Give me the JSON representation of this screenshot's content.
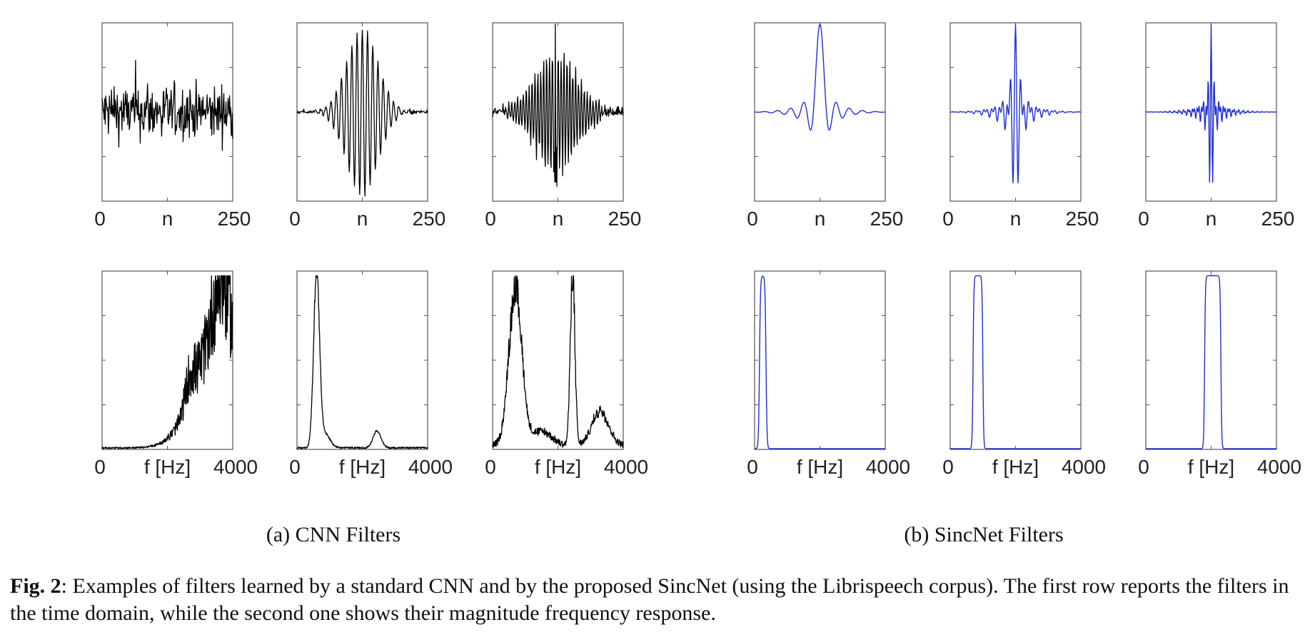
{
  "figure": {
    "caption_label": "Fig. 2",
    "caption_text": ": Examples of filters learned by a standard CNN and by the proposed SincNet (using the Librispeech corpus).  The first row reports the filters in the time domain, while the second one shows their magnitude frequency response.",
    "subcaptions": {
      "cnn": "(a) CNN Filters",
      "sincnet": "(b) SincNet Filters"
    },
    "colors": {
      "cnn_line": "#000000",
      "sincnet_line": "#1f2fd6",
      "axis": "#555555"
    }
  },
  "chart_data": [
    {
      "type": "line",
      "group": "CNN Filters",
      "domain": "time",
      "x_ticks": [
        "0",
        "n",
        "250"
      ],
      "xlim": [
        0,
        250
      ],
      "series_color": "#000000",
      "signal": "noise",
      "amplitude": 0.95
    },
    {
      "type": "line",
      "group": "CNN Filters",
      "domain": "time",
      "x_ticks": [
        "0",
        "n",
        "250"
      ],
      "xlim": [
        0,
        250
      ],
      "series_color": "#000000",
      "signal": "bandpass-noisy",
      "center": 125,
      "spread": 30,
      "freq": 0.1,
      "noise": 0.04
    },
    {
      "type": "line",
      "group": "CNN Filters",
      "domain": "time",
      "x_ticks": [
        "0",
        "n",
        "250"
      ],
      "xlim": [
        0,
        250
      ],
      "series_color": "#000000",
      "signal": "impulse-noisy",
      "center": 120,
      "spread": 40,
      "freq": 0.18,
      "noise": 0.14
    },
    {
      "type": "line",
      "group": "SincNet Filters",
      "domain": "time",
      "x_ticks": [
        "0",
        "n",
        "250"
      ],
      "xlim": [
        0,
        250
      ],
      "series_color": "#1f2fd6",
      "signal": "sinc",
      "center": 125,
      "freq": 0.04,
      "window": 125
    },
    {
      "type": "line",
      "group": "SincNet Filters",
      "domain": "time",
      "x_ticks": [
        "0",
        "n",
        "250"
      ],
      "xlim": [
        0,
        250
      ],
      "series_color": "#1f2fd6",
      "signal": "sinc",
      "center": 125,
      "freq": 0.1,
      "window": 125
    },
    {
      "type": "line",
      "group": "SincNet Filters",
      "domain": "time",
      "x_ticks": [
        "0",
        "n",
        "250"
      ],
      "xlim": [
        0,
        250
      ],
      "series_color": "#1f2fd6",
      "signal": "sinc",
      "center": 125,
      "freq": 0.17,
      "window": 125
    },
    {
      "type": "line",
      "group": "CNN Filters",
      "domain": "frequency",
      "x_ticks": [
        "0",
        "f [Hz]",
        "4000"
      ],
      "xlim": [
        0,
        4000
      ],
      "series_color": "#000000",
      "signal": "spectrum",
      "peaks": [
        [
          3500,
          700,
          0.55
        ],
        [
          3700,
          300,
          0.45
        ],
        [
          2700,
          150,
          0.15
        ]
      ],
      "jitter": 0.35,
      "floor": 0.01
    },
    {
      "type": "line",
      "group": "CNN Filters",
      "domain": "frequency",
      "x_ticks": [
        "0",
        "f [Hz]",
        "4000"
      ],
      "xlim": [
        0,
        4000
      ],
      "series_color": "#000000",
      "signal": "spectrum",
      "peaks": [
        [
          600,
          90,
          1.0
        ],
        [
          850,
          160,
          0.08
        ],
        [
          2450,
          120,
          0.1
        ]
      ],
      "jitter": 0.04,
      "floor": 0.01
    },
    {
      "type": "line",
      "group": "CNN Filters",
      "domain": "frequency",
      "x_ticks": [
        "0",
        "f [Hz]",
        "4000"
      ],
      "xlim": [
        0,
        4000
      ],
      "series_color": "#000000",
      "signal": "spectrum",
      "peaks": [
        [
          700,
          200,
          0.9
        ],
        [
          2450,
          70,
          1.0
        ],
        [
          3300,
          250,
          0.2
        ],
        [
          1500,
          300,
          0.08
        ]
      ],
      "jitter": 0.12,
      "floor": 0.04
    },
    {
      "type": "line",
      "group": "SincNet Filters",
      "domain": "frequency",
      "x_ticks": [
        "0",
        "f [Hz]",
        "4000"
      ],
      "xlim": [
        0,
        4000
      ],
      "series_color": "#1f2fd6",
      "signal": "passband",
      "lo": 150,
      "hi": 350,
      "edge": 60,
      "round": true
    },
    {
      "type": "line",
      "group": "SincNet Filters",
      "domain": "frequency",
      "x_ticks": [
        "0",
        "f [Hz]",
        "4000"
      ],
      "xlim": [
        0,
        4000
      ],
      "series_color": "#1f2fd6",
      "signal": "passband",
      "lo": 700,
      "hi": 1000,
      "edge": 50
    },
    {
      "type": "line",
      "group": "SincNet Filters",
      "domain": "frequency",
      "x_ticks": [
        "0",
        "f [Hz]",
        "4000"
      ],
      "xlim": [
        0,
        4000
      ],
      "series_color": "#1f2fd6",
      "signal": "passband",
      "lo": 1800,
      "hi": 2300,
      "edge": 50
    }
  ]
}
